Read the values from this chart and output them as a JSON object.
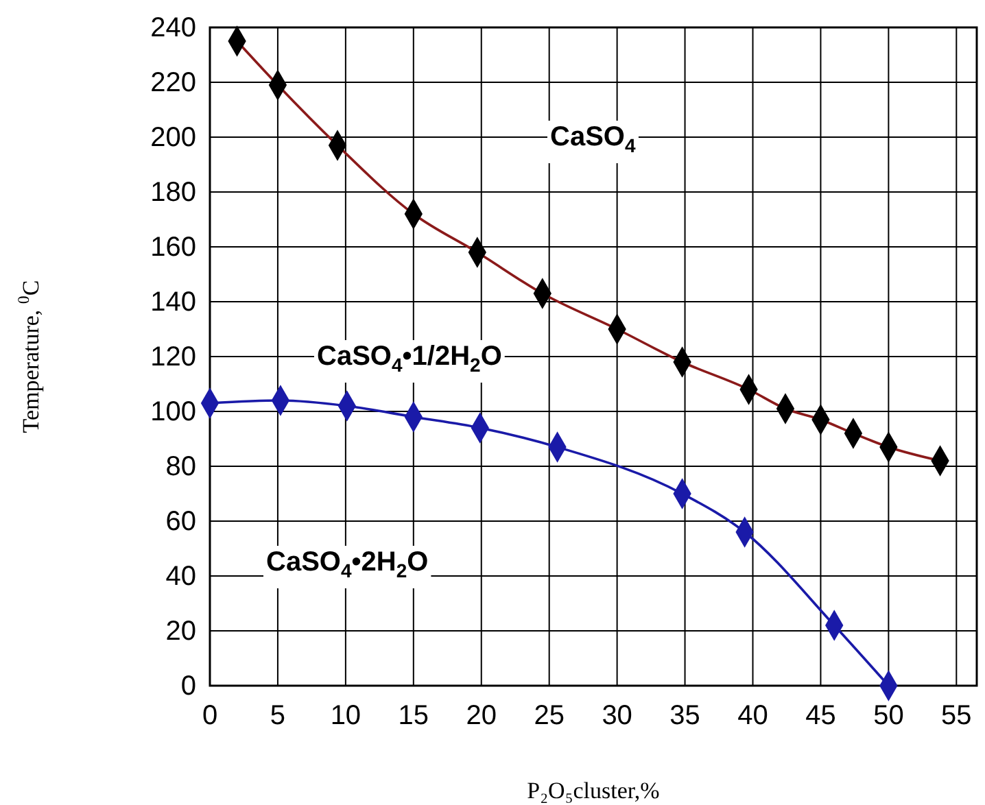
{
  "chart_data": {
    "type": "line",
    "xlabel": "P₂O₅cluster,%",
    "ylabel": "Temperature, $^{0}$C",
    "xlim": [
      0,
      56.5
    ],
    "xticks": [
      0,
      5,
      10,
      15,
      20,
      25,
      30,
      35,
      40,
      45,
      50,
      55
    ],
    "ylim": [
      0,
      240
    ],
    "yticks": [
      0,
      20,
      40,
      60,
      80,
      100,
      120,
      140,
      160,
      180,
      200,
      220,
      240
    ],
    "grid": true,
    "marker": "diamond",
    "line_style": "solid",
    "series": [
      {
        "color": "#8b1a1a",
        "colors": [
          "#000000",
          "#000000",
          "#000000",
          "#000000",
          "#000000",
          "#000000",
          "#000000",
          "#000000",
          "#000000",
          "#000000",
          "#000000",
          "#000000",
          "#000000",
          "#000000"
        ],
        "x": [
          2,
          5,
          9.4,
          15,
          19.7,
          24.5,
          30,
          34.8,
          39.7,
          42.4,
          45,
          47.4,
          50,
          53.8
        ],
        "values": [
          235,
          219,
          197,
          172,
          158,
          143,
          130,
          118,
          108,
          101,
          97,
          92,
          87,
          82
        ]
      },
      {
        "color": "#1a1aa8",
        "x": [
          0,
          5.2,
          10.1,
          15,
          19.9,
          25.6,
          34.8,
          39.4,
          46,
          50
        ],
        "values": [
          103,
          104,
          102,
          98,
          94,
          87,
          70,
          56,
          22,
          0
        ]
      }
    ],
    "annotations": [
      "CaSO$_{4}$",
      "CaSO$_{4}$•1/2H$_{2}$O",
      "CaSO$_{4}$•2H$_{2}$O"
    ]
  }
}
